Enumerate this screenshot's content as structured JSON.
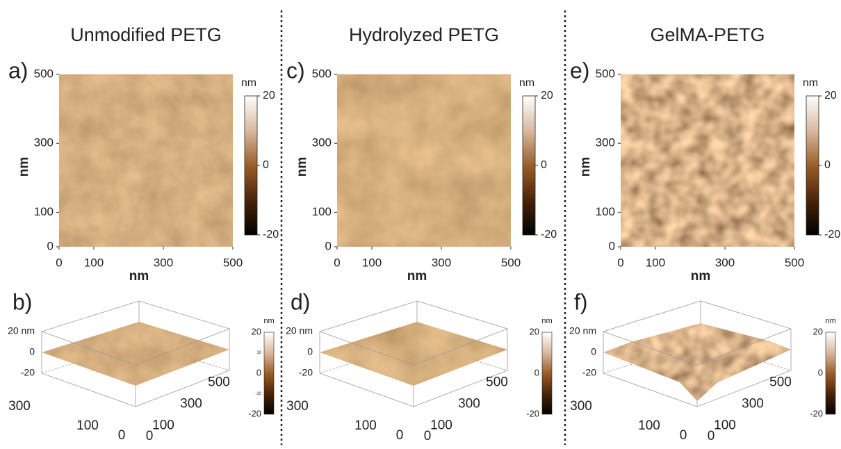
{
  "columns": [
    {
      "title": "Unmodified PETG",
      "map": {
        "label": "a)",
        "xticks": [
          0,
          100,
          300,
          500
        ],
        "yticks": [
          0,
          100,
          300,
          500
        ],
        "xlabel": "nm",
        "ylabel": "nm",
        "colorbar": {
          "unit": "nm",
          "ticks": [
            20,
            0,
            -20
          ]
        }
      },
      "surface": {
        "label": "b)",
        "zticks": [
          {
            "value": 20,
            "label": "20 nm"
          },
          0,
          -20
        ],
        "left_ticks": [
          300,
          100,
          0
        ],
        "right_ticks": [
          0,
          100,
          300,
          500
        ],
        "colorbar": {
          "unit": "nm",
          "ticks": [
            20,
            0,
            -20
          ],
          "minor_ticks": [
            10,
            -10
          ]
        }
      }
    },
    {
      "title": "Hydrolyzed PETG",
      "map": {
        "label": "c)",
        "xticks": [
          0,
          100,
          300,
          500
        ],
        "yticks": [
          0,
          100,
          300,
          500
        ],
        "xlabel": "nm",
        "ylabel": "nm",
        "colorbar": {
          "unit": "nm",
          "ticks": [
            20,
            0,
            -20
          ]
        }
      },
      "surface": {
        "label": "d)",
        "zticks": [
          {
            "value": 20,
            "label": "20 nm"
          },
          0,
          -20
        ],
        "left_ticks": [
          300,
          100,
          0
        ],
        "right_ticks": [
          0,
          100,
          300,
          500
        ],
        "colorbar": {
          "unit": "nm",
          "ticks": [
            20,
            0,
            -20
          ]
        }
      }
    },
    {
      "title": "GelMA-PETG",
      "map": {
        "label": "e)",
        "xticks": [
          0,
          100,
          300,
          500
        ],
        "yticks": [
          0,
          100,
          300,
          500
        ],
        "xlabel": "nm",
        "ylabel": "nm",
        "colorbar": {
          "unit": "nm",
          "ticks": [
            20,
            0,
            -20
          ]
        }
      },
      "surface": {
        "label": "f)",
        "zticks": [
          {
            "value": 20,
            "label": "20 nm"
          },
          0,
          -20
        ],
        "left_ticks": [
          300,
          100,
          0
        ],
        "right_ticks": [
          0,
          100,
          300,
          500
        ],
        "colorbar": {
          "unit": "nm",
          "ticks": [
            20,
            0,
            -20
          ]
        }
      }
    }
  ]
}
